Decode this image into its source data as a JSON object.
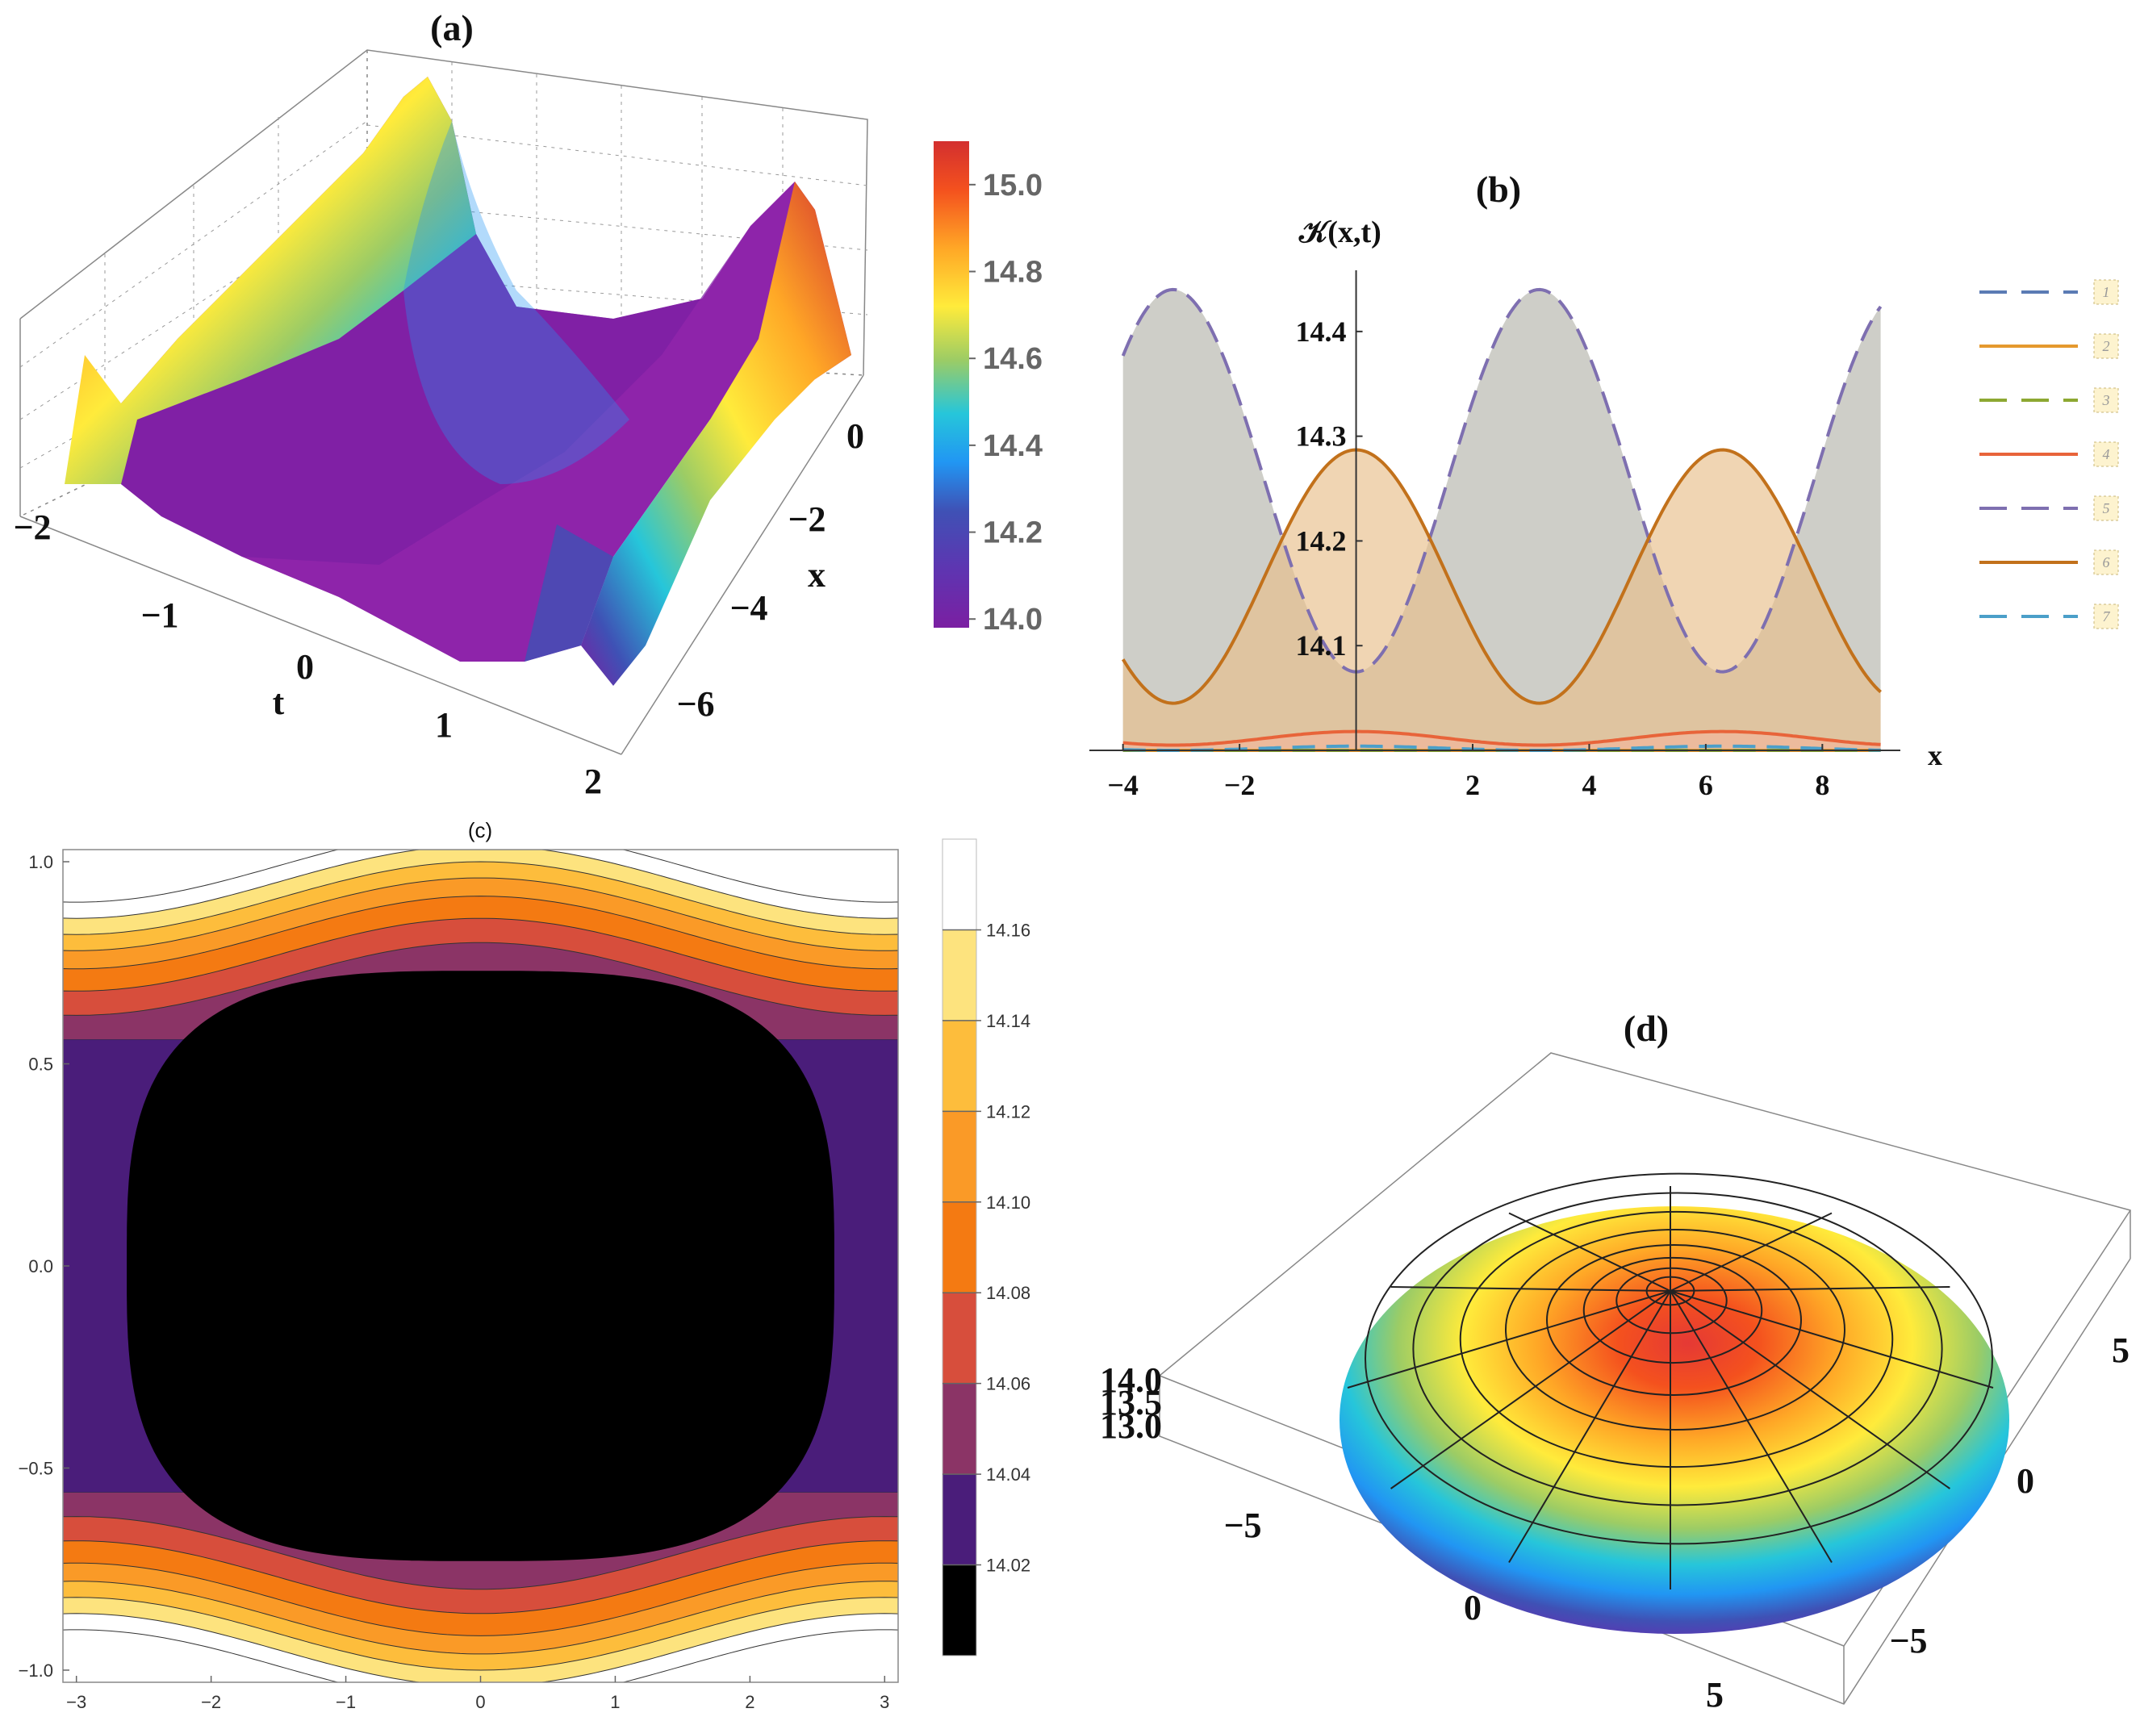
{
  "figure": {
    "panel_a_title": "(a)",
    "panel_b_title": "(b)",
    "panel_c_title": "(c)",
    "panel_d_title": "(d)"
  },
  "chart_data": [
    {
      "id": "a",
      "type": "surface3d",
      "title": "(a)",
      "xlabel": "t",
      "ylabel": "x",
      "t_ticks": [
        "−2",
        "−1",
        "0",
        "1",
        "2"
      ],
      "x_ticks": [
        "0",
        "−2",
        "−4",
        "−6"
      ],
      "t_range": [
        -2,
        2
      ],
      "x_range": [
        -7,
        1
      ],
      "z_range": [
        14.0,
        15.1
      ],
      "colorbar_ticks": [
        "14.0",
        "14.2",
        "14.4",
        "14.6",
        "14.8",
        "15.0"
      ],
      "colorbar_range": [
        13.98,
        15.1
      ],
      "colormap": [
        "#7b1fa2",
        "#5e35b1",
        "#3f51b5",
        "#2196f3",
        "#26c6da",
        "#9ccc65",
        "#ffeb3b",
        "#ffa726",
        "#f4511e",
        "#d32f2f"
      ]
    },
    {
      "id": "b",
      "type": "line",
      "title": "(b)",
      "ylabel": "𝒦(x,t)",
      "xlabel": "x",
      "x_ticks": [
        "−4",
        "−2",
        "2",
        "4",
        "6",
        "8"
      ],
      "y_ticks": [
        "14.1",
        "14.2",
        "14.3",
        "14.4"
      ],
      "xlim": [
        -4.3,
        9.2
      ],
      "ylim": [
        14.0,
        14.47
      ],
      "x_range": [
        -4,
        9
      ],
      "series": [
        {
          "name": "1",
          "color": "#5b7bb4",
          "dash": true,
          "filled": false,
          "base": 14.0,
          "amp": 0.0,
          "period": 6.2832,
          "phase": 0.0
        },
        {
          "name": "2",
          "color": "#e5992e",
          "dash": false,
          "filled": false,
          "base": 14.0,
          "amp": 0.0,
          "period": 6.2832,
          "phase": 0.0
        },
        {
          "name": "3",
          "color": "#8da832",
          "dash": true,
          "filled": false,
          "base": 14.0,
          "amp": 0.0,
          "period": 6.2832,
          "phase": 0.0
        },
        {
          "name": "4",
          "color": "#e8643a",
          "dash": false,
          "filled": true,
          "base": 14.005,
          "amp": 0.013,
          "period": 6.2832,
          "phase": 0.0
        },
        {
          "name": "5",
          "color": "#7e6fb0",
          "dash": true,
          "filled": true,
          "base": 14.075,
          "amp": 0.365,
          "period": 6.2832,
          "phase": 3.1416
        },
        {
          "name": "6",
          "color": "#c2711b",
          "dash": false,
          "filled": true,
          "base": 14.045,
          "amp": 0.242,
          "period": 6.2832,
          "phase": 0.0
        },
        {
          "name": "7",
          "color": "#4b9fc9",
          "dash": true,
          "filled": false,
          "base": 14.0,
          "amp": 0.004,
          "period": 6.2832,
          "phase": 0.0
        }
      ],
      "legend": [
        "1",
        "2",
        "3",
        "4",
        "5",
        "6",
        "7"
      ],
      "legend_position": "right"
    },
    {
      "id": "c",
      "type": "contour",
      "title": "(c)",
      "x_ticks": [
        "−3",
        "−2",
        "−1",
        "0",
        "1",
        "2",
        "3"
      ],
      "y_ticks": [
        "1.0",
        "0.5",
        "0.0",
        "−0.5",
        "−1.0"
      ],
      "xlim": [
        -3.1,
        3.1
      ],
      "ylim": [
        -1.03,
        1.03
      ],
      "levels": [
        14.02,
        14.04,
        14.06,
        14.08,
        14.1,
        14.12,
        14.14,
        14.16
      ],
      "level_colors": [
        "#000000",
        "#4a1d7a",
        "#8b3466",
        "#d74e3c",
        "#f47a12",
        "#fa9a27",
        "#fdbd3c",
        "#fde37e",
        "#ffffff"
      ],
      "colorbar_ticks": [
        "14.02",
        "14.04",
        "14.06",
        "14.08",
        "14.10",
        "14.12",
        "14.14",
        "14.16"
      ]
    },
    {
      "id": "d",
      "type": "surface3d",
      "title": "(d)",
      "x_ticks": [
        "−5",
        "0",
        "5"
      ],
      "y_ticks": [
        "5",
        "0",
        "−5"
      ],
      "z_ticks": [
        "14.0",
        "13.5",
        "13.0"
      ],
      "x_range": [
        -8,
        8
      ],
      "y_range": [
        -8,
        8
      ],
      "z_range": [
        13.0,
        14.2
      ],
      "colormap": [
        "#5e35b1",
        "#3f51b5",
        "#2196f3",
        "#26c6da",
        "#9ccc65",
        "#ffeb3b",
        "#ffa726",
        "#f4511e",
        "#e53935"
      ]
    }
  ]
}
